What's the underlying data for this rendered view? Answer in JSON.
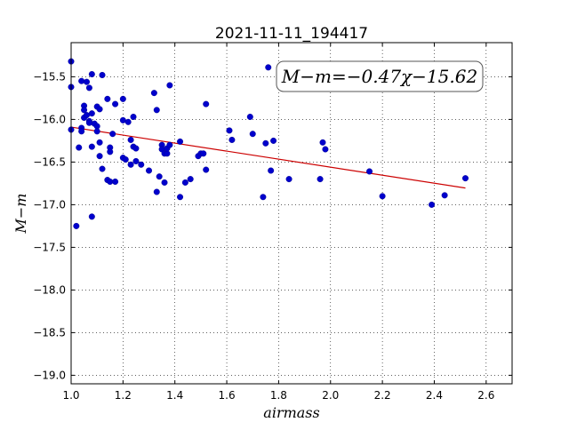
{
  "chart_data": {
    "type": "scatter",
    "title": "2021-11-11_194417",
    "xlabel": "airmass",
    "ylabel": "M−m",
    "xlim": [
      1.0,
      2.7
    ],
    "ylim": [
      -19.1,
      -15.1
    ],
    "y_inverted": true,
    "grid": true,
    "x_ticks": [
      1.0,
      1.2,
      1.4,
      1.6,
      1.8,
      2.0,
      2.2,
      2.4,
      2.6
    ],
    "x_tick_labels": [
      "1.0",
      "1.2",
      "1.4",
      "1.6",
      "1.8",
      "2.0",
      "2.2",
      "2.4",
      "2.6"
    ],
    "y_ticks": [
      -15.5,
      -16.0,
      -16.5,
      -17.0,
      -17.5,
      -18.0,
      -18.5,
      -19.0
    ],
    "y_tick_labels": [
      "−15.5",
      "−16.0",
      "−16.5",
      "−17.0",
      "−17.5",
      "−18.0",
      "−18.5",
      "−19.0"
    ],
    "annotation": "M−m=−0.47χ−15.62",
    "fit": {
      "slope": -0.47,
      "intercept": -15.62,
      "x_range": [
        1.0,
        2.52
      ],
      "color": "#cc0000"
    },
    "point_color": "#0000cc",
    "points": [
      [
        1.0,
        -15.32
      ],
      [
        1.0,
        -15.62
      ],
      [
        1.0,
        -16.12
      ],
      [
        1.03,
        -16.33
      ],
      [
        1.04,
        -15.55
      ],
      [
        1.04,
        -16.1
      ],
      [
        1.04,
        -16.14
      ],
      [
        1.05,
        -15.84
      ],
      [
        1.05,
        -15.89
      ],
      [
        1.05,
        -15.98
      ],
      [
        1.06,
        -15.56
      ],
      [
        1.06,
        -15.95
      ],
      [
        1.07,
        -15.63
      ],
      [
        1.07,
        -16.02
      ],
      [
        1.07,
        -16.04
      ],
      [
        1.08,
        -15.47
      ],
      [
        1.08,
        -15.93
      ],
      [
        1.08,
        -16.32
      ],
      [
        1.09,
        -16.05
      ],
      [
        1.1,
        -15.85
      ],
      [
        1.1,
        -16.08
      ],
      [
        1.1,
        -16.14
      ],
      [
        1.11,
        -15.88
      ],
      [
        1.11,
        -16.27
      ],
      [
        1.11,
        -16.43
      ],
      [
        1.12,
        -15.48
      ],
      [
        1.12,
        -16.58
      ],
      [
        1.14,
        -16.71
      ],
      [
        1.14,
        -15.76
      ],
      [
        1.15,
        -16.33
      ],
      [
        1.15,
        -16.73
      ],
      [
        1.15,
        -16.38
      ],
      [
        1.16,
        -16.17
      ],
      [
        1.17,
        -15.82
      ],
      [
        1.17,
        -16.73
      ],
      [
        1.2,
        -15.76
      ],
      [
        1.2,
        -16.01
      ],
      [
        1.2,
        -16.45
      ],
      [
        1.21,
        -16.47
      ],
      [
        1.22,
        -16.03
      ],
      [
        1.23,
        -16.53
      ],
      [
        1.23,
        -16.24
      ],
      [
        1.24,
        -15.97
      ],
      [
        1.24,
        -16.32
      ],
      [
        1.25,
        -16.34
      ],
      [
        1.25,
        -16.49
      ],
      [
        1.27,
        -16.53
      ],
      [
        1.3,
        -16.6
      ],
      [
        1.32,
        -15.69
      ],
      [
        1.33,
        -16.85
      ],
      [
        1.33,
        -15.89
      ],
      [
        1.34,
        -16.67
      ],
      [
        1.35,
        -16.3
      ],
      [
        1.35,
        -16.35
      ],
      [
        1.36,
        -16.4
      ],
      [
        1.36,
        -16.74
      ],
      [
        1.37,
        -16.4
      ],
      [
        1.37,
        -16.34
      ],
      [
        1.38,
        -15.6
      ],
      [
        1.38,
        -16.3
      ],
      [
        1.42,
        -16.26
      ],
      [
        1.42,
        -16.91
      ],
      [
        1.44,
        -16.74
      ],
      [
        1.46,
        -16.7
      ],
      [
        1.49,
        -16.43
      ],
      [
        1.5,
        -16.4
      ],
      [
        1.51,
        -16.4
      ],
      [
        1.52,
        -15.82
      ],
      [
        1.52,
        -16.59
      ],
      [
        1.61,
        -16.13
      ],
      [
        1.62,
        -16.24
      ],
      [
        1.69,
        -15.97
      ],
      [
        1.7,
        -16.17
      ],
      [
        1.74,
        -16.91
      ],
      [
        1.75,
        -16.28
      ],
      [
        1.76,
        -15.39
      ],
      [
        1.77,
        -16.6
      ],
      [
        1.78,
        -16.25
      ],
      [
        1.84,
        -16.7
      ],
      [
        1.96,
        -16.7
      ],
      [
        1.97,
        -16.27
      ],
      [
        1.98,
        -16.35
      ],
      [
        2.15,
        -16.61
      ],
      [
        2.2,
        -16.9
      ],
      [
        2.39,
        -17.0
      ],
      [
        2.44,
        -16.89
      ],
      [
        2.52,
        -16.69
      ],
      [
        1.02,
        -17.25
      ],
      [
        1.08,
        -17.14
      ]
    ]
  }
}
